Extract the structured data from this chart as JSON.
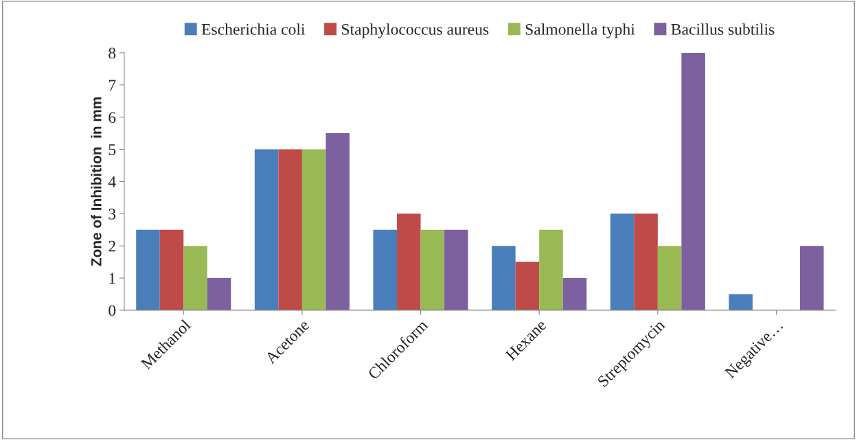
{
  "chart_data": {
    "type": "bar",
    "categories": [
      "Methanol",
      "Acetone",
      "Chloroform",
      "Hexane",
      "Streptomycin",
      "Negative…"
    ],
    "series": [
      {
        "name": "Escherichia coli",
        "color": "#4a7ebb",
        "values": [
          2.5,
          5,
          2.5,
          2,
          3,
          0.5
        ]
      },
      {
        "name": "Staphylococcus aureus",
        "color": "#be4b48",
        "values": [
          2.5,
          5,
          3,
          1.5,
          3,
          0
        ]
      },
      {
        "name": "Salmonella typhi",
        "color": "#98b954",
        "values": [
          2,
          5,
          2.5,
          2.5,
          2,
          0
        ]
      },
      {
        "name": "Bacillus subtilis",
        "color": "#7d60a0",
        "values": [
          1,
          5.5,
          2.5,
          1,
          8,
          2
        ]
      }
    ],
    "ylabel": "Zone of Inhibition  in mm",
    "ylim": [
      0,
      8
    ],
    "yticks": [
      0,
      1,
      2,
      3,
      4,
      5,
      6,
      7,
      8
    ],
    "grid": false,
    "legend": "top"
  }
}
